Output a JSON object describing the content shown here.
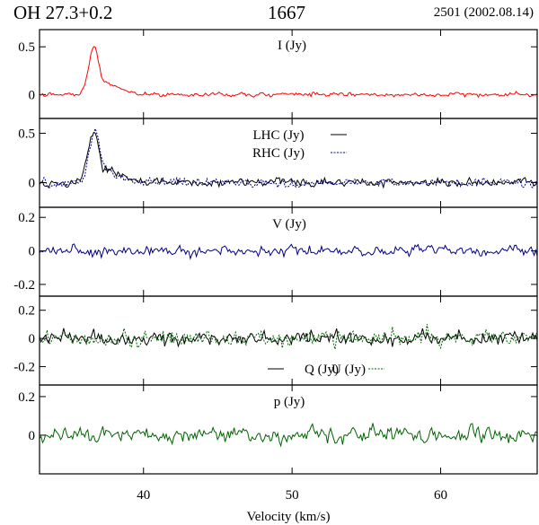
{
  "header": {
    "source": "OH 27.3+0.2",
    "frequency": "1667",
    "epoch": "2501 (2002.08.14)"
  },
  "chart_data": {
    "type": "line",
    "xlabel": "Velocity (km/s)",
    "xlim": [
      33,
      66.5
    ],
    "xticks": [
      40,
      50,
      60
    ],
    "panels": [
      {
        "id": "I",
        "ylim": [
          -0.25,
          0.68
        ],
        "yticks": [
          0,
          0.5
        ],
        "ytick_labels": [
          "0",
          "0.5"
        ],
        "series": [
          {
            "name": "I (Jy)",
            "color": "#ff0000",
            "style": "solid",
            "noise": 0.03,
            "features": [
              {
                "center": 36.65,
                "amplitude": 0.46,
                "width": 0.32
              },
              {
                "center": 37.6,
                "amplitude": 0.1,
                "width": 0.9
              }
            ]
          }
        ]
      },
      {
        "id": "LR",
        "ylim": [
          -0.25,
          0.65
        ],
        "yticks": [
          0,
          0.5
        ],
        "ytick_labels": [
          "0",
          "0.5"
        ],
        "series": [
          {
            "name": "LHC (Jy)",
            "color": "#000000",
            "style": "solid",
            "noise": 0.055,
            "features": [
              {
                "center": 36.6,
                "amplitude": 0.45,
                "width": 0.35
              },
              {
                "center": 37.6,
                "amplitude": 0.12,
                "width": 0.8
              }
            ]
          },
          {
            "name": "RHC (Jy)",
            "color": "#00008b",
            "style": "dotted",
            "noise": 0.055,
            "features": [
              {
                "center": 36.7,
                "amplitude": 0.47,
                "width": 0.35
              },
              {
                "center": 37.6,
                "amplitude": 0.1,
                "width": 0.8
              }
            ]
          }
        ]
      },
      {
        "id": "V",
        "ylim": [
          -0.27,
          0.26
        ],
        "yticks": [
          -0.2,
          0,
          0.2
        ],
        "ytick_labels": [
          "-0.2",
          "0",
          "0.2"
        ],
        "series": [
          {
            "name": "V (Jy)",
            "color": "#00008b",
            "style": "solid",
            "noise": 0.038,
            "features": []
          }
        ]
      },
      {
        "id": "QU",
        "ylim": [
          -0.33,
          0.3
        ],
        "yticks": [
          -0.2,
          0,
          0.2
        ],
        "ytick_labels": [
          "-0.2",
          "0",
          "0.2"
        ],
        "series": [
          {
            "name": "Q (Jy)",
            "color": "#000000",
            "style": "solid",
            "noise": 0.06,
            "features": []
          },
          {
            "name": "U (Jy)",
            "color": "#006400",
            "style": "dotted",
            "noise": 0.07,
            "features": []
          }
        ]
      },
      {
        "id": "p",
        "ylim": [
          -0.2,
          0.26
        ],
        "yticks": [
          0,
          0.2
        ],
        "ytick_labels": [
          "0",
          "0.2"
        ],
        "series": [
          {
            "name": "p (Jy)",
            "color": "#006400",
            "style": "solid",
            "noise": 0.05,
            "features": []
          }
        ]
      }
    ]
  }
}
